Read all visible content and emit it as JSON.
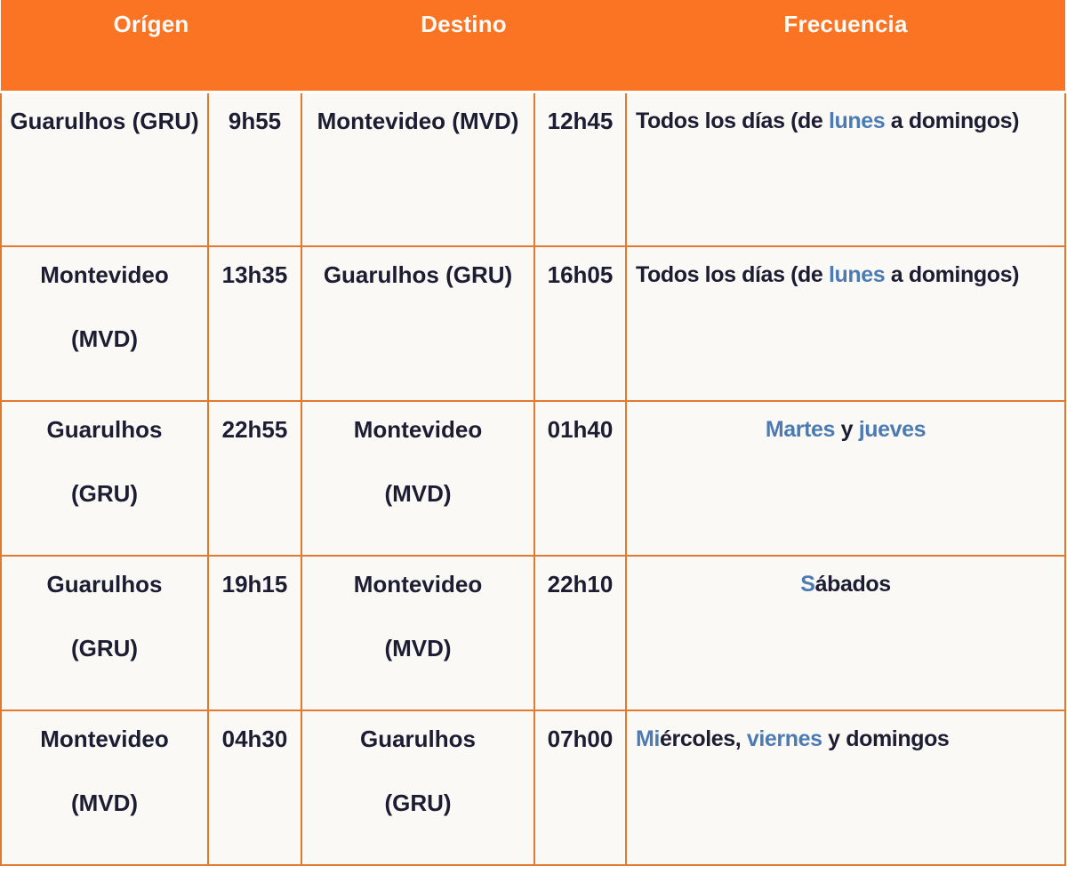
{
  "colors": {
    "header_bg": "#FB7423",
    "header_text": "#FDFBF7",
    "grid_border": "#E2792F",
    "cell_bg": "#FAF9F6",
    "text_dark": "#1C1C33",
    "link_blue": "#4C7BB4"
  },
  "header": {
    "columns": [
      {
        "id": "origen",
        "label": "Orígen",
        "colspan": 2
      },
      {
        "id": "destino",
        "label": "Destino",
        "colspan": 2
      },
      {
        "id": "frecuencia",
        "label": "Frecuencia",
        "colspan": 1
      }
    ]
  },
  "rows": [
    {
      "origin_city": [
        "Guarulhos (GRU)"
      ],
      "origin_time": "9h55",
      "dest_city": [
        "Montevideo (MVD)"
      ],
      "dest_time": "12h45",
      "frequency": {
        "align": "left",
        "segments": [
          {
            "text": "Todos los días (de ",
            "style": "dark"
          },
          {
            "text": "lunes",
            "style": "link"
          },
          {
            "text": " a domingos)",
            "style": "dark"
          }
        ]
      }
    },
    {
      "origin_city": [
        "Montevideo",
        "(MVD)"
      ],
      "origin_time": "13h35",
      "dest_city": [
        "Guarulhos (GRU)"
      ],
      "dest_time": "16h05",
      "frequency": {
        "align": "left",
        "segments": [
          {
            "text": "Todos los días (de ",
            "style": "dark"
          },
          {
            "text": "lunes",
            "style": "link"
          },
          {
            "text": " a domingos)",
            "style": "dark"
          }
        ]
      }
    },
    {
      "origin_city": [
        "Guarulhos",
        "(GRU)"
      ],
      "origin_time": "22h55",
      "dest_city": [
        "Montevideo",
        "(MVD)"
      ],
      "dest_time": "01h40",
      "frequency": {
        "align": "center",
        "segments": [
          {
            "text": "Martes",
            "style": "link"
          },
          {
            "text": " y ",
            "style": "dark"
          },
          {
            "text": "jueves",
            "style": "link"
          }
        ]
      }
    },
    {
      "origin_city": [
        "Guarulhos",
        "(GRU)"
      ],
      "origin_time": "19h15",
      "dest_city": [
        "Montevideo",
        "(MVD)"
      ],
      "dest_time": "22h10",
      "frequency": {
        "align": "center",
        "segments": [
          {
            "text": "S",
            "style": "link"
          },
          {
            "text": "ábados",
            "style": "dark"
          }
        ]
      }
    },
    {
      "origin_city": [
        "Montevideo",
        "(MVD)"
      ],
      "origin_time": "04h30",
      "dest_city": [
        "Guarulhos",
        "(GRU)"
      ],
      "dest_time": "07h00",
      "frequency": {
        "align": "left",
        "segments": [
          {
            "text": "Mi",
            "style": "link"
          },
          {
            "text": "ércoles, ",
            "style": "dark"
          },
          {
            "text": "viernes",
            "style": "link"
          },
          {
            "text": " y domingos",
            "style": "dark"
          }
        ]
      }
    }
  ]
}
